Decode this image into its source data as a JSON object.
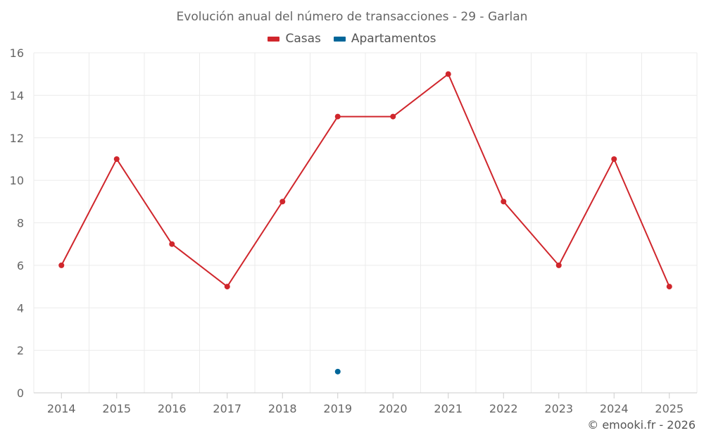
{
  "chart_data": {
    "type": "line",
    "title": "Evolución anual del número de transacciones - 29 - Garlan",
    "categories": [
      "2014",
      "2015",
      "2016",
      "2017",
      "2018",
      "2019",
      "2020",
      "2021",
      "2022",
      "2023",
      "2024",
      "2025"
    ],
    "series": [
      {
        "name": "Casas",
        "color": "#d0262c",
        "values": [
          6,
          11,
          7,
          5,
          9,
          13,
          13,
          15,
          9,
          6,
          11,
          5
        ]
      },
      {
        "name": "Apartamentos",
        "color": "#006699",
        "values": [
          null,
          null,
          null,
          null,
          null,
          1,
          null,
          null,
          null,
          null,
          null,
          null
        ]
      }
    ],
    "ylim": [
      0,
      16
    ],
    "yticks": [
      "0",
      "2",
      "4",
      "6",
      "8",
      "10",
      "12",
      "14",
      "16"
    ],
    "grid": true,
    "legend_position": "top-center"
  },
  "credit": "© emooki.fr - 2026"
}
